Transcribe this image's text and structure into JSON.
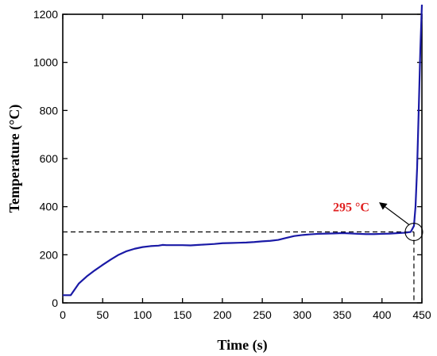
{
  "chart_data": {
    "type": "line",
    "title": "",
    "xlabel": "Time (s)",
    "ylabel": "Temperature (°C)",
    "xlim": [
      0,
      450
    ],
    "ylim": [
      0,
      1200
    ],
    "xticks": [
      0,
      50,
      100,
      150,
      200,
      250,
      300,
      350,
      400,
      450
    ],
    "yticks": [
      0,
      200,
      400,
      600,
      800,
      1000,
      1200
    ],
    "grid": false,
    "legend": "none",
    "series": [
      {
        "color": "#1a1aa6",
        "x": [
          0,
          10,
          20,
          30,
          40,
          50,
          60,
          70,
          80,
          90,
          100,
          110,
          120,
          125,
          130,
          140,
          150,
          160,
          170,
          180,
          190,
          200,
          210,
          220,
          230,
          240,
          250,
          260,
          270,
          280,
          290,
          300,
          310,
          320,
          330,
          340,
          350,
          360,
          370,
          380,
          390,
          400,
          410,
          420,
          430,
          436,
          440,
          442,
          444,
          446,
          448,
          450
        ],
        "y": [
          32,
          32,
          80,
          110,
          135,
          158,
          180,
          200,
          215,
          225,
          232,
          236,
          238,
          241,
          240,
          240,
          240,
          239,
          241,
          243,
          245,
          248,
          249,
          250,
          251,
          253,
          256,
          258,
          262,
          270,
          278,
          282,
          285,
          287,
          288,
          289,
          290,
          289,
          287,
          286,
          286,
          287,
          288,
          290,
          292,
          295,
          320,
          400,
          560,
          800,
          1050,
          1240
        ]
      }
    ],
    "reference_lines": [
      {
        "orientation": "horizontal",
        "value": 295,
        "style": "dashed"
      },
      {
        "orientation": "vertical",
        "value": 440,
        "style": "dashed"
      }
    ],
    "annotation": {
      "text": "295 °C",
      "color": "#e02020",
      "x": 440,
      "y": 295
    }
  }
}
